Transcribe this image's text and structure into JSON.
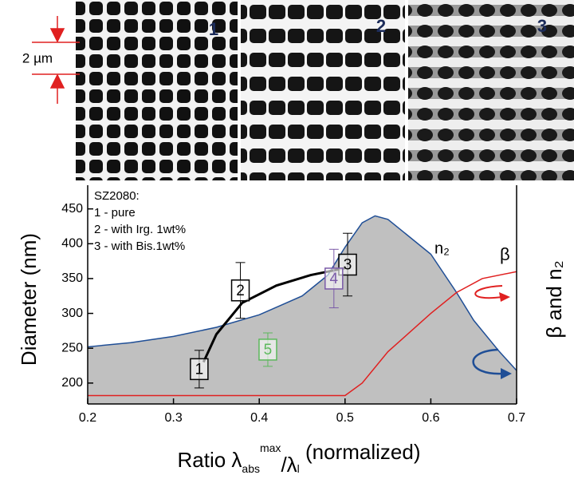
{
  "images": {
    "panels": [
      "1",
      "2",
      "3"
    ],
    "scale_bar": "2 µm"
  },
  "chart_data": {
    "type": "scatter",
    "ylabel": "Diameter (nm)",
    "y2label": "β and n₂",
    "xlabel_parts": [
      "Ratio λ",
      "abs",
      "max",
      "/λ",
      "l",
      " (normalized)"
    ],
    "legend_lines": [
      "SZ2080:",
      "1 - pure",
      "2 - with Irg. 1wt%",
      "3 - with Bis.1wt%"
    ],
    "xlim": [
      0.2,
      0.7
    ],
    "xticks": [
      0.2,
      0.3,
      0.4,
      0.5,
      0.6,
      0.7
    ],
    "ylim": [
      170,
      484
    ],
    "yticks": [
      200,
      250,
      300,
      350,
      400,
      450
    ],
    "points": {
      "labels": [
        "1",
        "2",
        "3",
        "4",
        "5"
      ],
      "x": [
        0.33,
        0.378,
        0.503,
        0.487,
        0.41
      ],
      "values": [
        220,
        333,
        370,
        350,
        248
      ],
      "errors": [
        27,
        40,
        45,
        42,
        24
      ],
      "colors": [
        "#000000",
        "#000000",
        "#000000",
        "#7a5aa8",
        "#5cb85c"
      ]
    },
    "curves": [
      {
        "name": "n₂",
        "color": "#1f4e96",
        "fill": "#c0c0c0",
        "x": [
          0.2,
          0.25,
          0.3,
          0.35,
          0.4,
          0.45,
          0.48,
          0.5,
          0.52,
          0.535,
          0.55,
          0.6,
          0.63,
          0.65,
          0.68,
          0.7
        ],
        "values": [
          252,
          258,
          267,
          280,
          298,
          325,
          355,
          395,
          430,
          440,
          435,
          385,
          330,
          290,
          245,
          218
        ]
      },
      {
        "name": "β",
        "color": "#e02020",
        "x": [
          0.2,
          0.3,
          0.4,
          0.5,
          0.52,
          0.55,
          0.6,
          0.63,
          0.66,
          0.7
        ],
        "values": [
          182,
          182,
          182,
          182,
          200,
          245,
          300,
          330,
          350,
          360
        ]
      },
      {
        "color": "#000000",
        "x": [
          0.335,
          0.35,
          0.38,
          0.42,
          0.46,
          0.5
        ],
        "values": [
          230,
          270,
          315,
          340,
          355,
          365
        ]
      }
    ]
  }
}
